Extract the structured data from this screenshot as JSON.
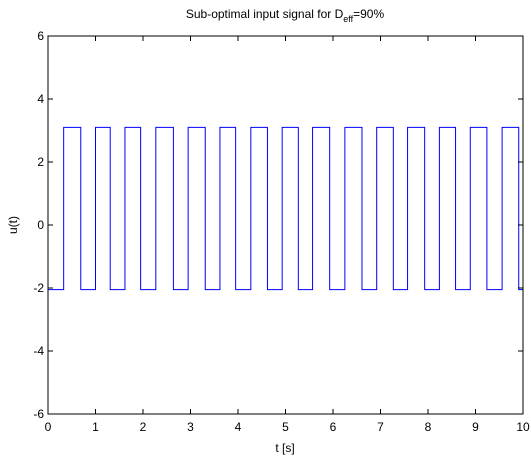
{
  "chart_data": {
    "type": "line",
    "title": {
      "prefix": "Sub-optimal input signal for D",
      "subscript": "eff",
      "suffix": "=90%"
    },
    "xlabel": "t [s]",
    "ylabel": "u(t)",
    "xlim": [
      0,
      10
    ],
    "ylim": [
      -6,
      6
    ],
    "xticks": [
      0,
      1,
      2,
      3,
      4,
      5,
      6,
      7,
      8,
      9,
      10
    ],
    "yticks": [
      -6,
      -4,
      -2,
      0,
      2,
      4,
      6
    ],
    "grid": false,
    "legend": "none",
    "high_level": 3.1,
    "low_level": -2.05,
    "high_intervals": [
      [
        0.33,
        0.69
      ],
      [
        1.0,
        1.31
      ],
      [
        1.62,
        1.95
      ],
      [
        2.27,
        2.64
      ],
      [
        2.95,
        3.31
      ],
      [
        3.62,
        3.95
      ],
      [
        4.27,
        4.62
      ],
      [
        4.93,
        5.27
      ],
      [
        5.57,
        5.93
      ],
      [
        6.25,
        6.61
      ],
      [
        6.92,
        7.27
      ],
      [
        7.57,
        7.93
      ],
      [
        8.24,
        8.58
      ],
      [
        8.89,
        9.24
      ],
      [
        9.56,
        9.91
      ]
    ],
    "line_color": "#0000ff"
  }
}
